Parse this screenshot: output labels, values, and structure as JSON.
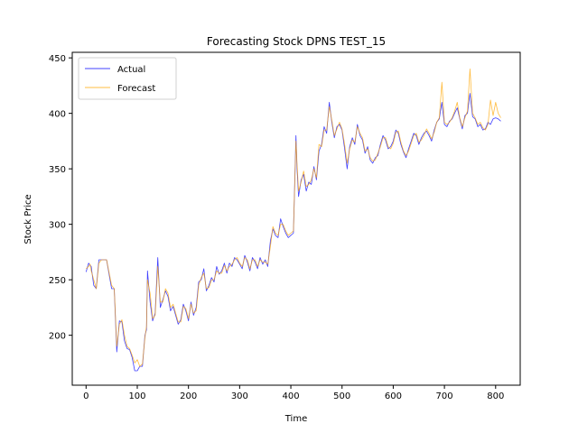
{
  "chart_data": {
    "type": "line",
    "title": "Forecasting Stock DPNS TEST_15",
    "xlabel": "Time",
    "ylabel": "Stock Price",
    "xlim": [
      -27,
      848
    ],
    "ylim": [
      155,
      455
    ],
    "xticks": [
      0,
      100,
      200,
      300,
      400,
      500,
      600,
      700,
      800
    ],
    "yticks": [
      200,
      250,
      300,
      350,
      400,
      450
    ],
    "grid": false,
    "legend_position": "top-left",
    "series": [
      {
        "name": "Actual",
        "color": "#0000ff",
        "x": [
          0,
          5,
          8,
          10,
          12,
          15,
          20,
          25,
          30,
          40,
          50,
          55,
          60,
          65,
          70,
          75,
          80,
          85,
          90,
          95,
          100,
          105,
          110,
          115,
          118,
          120,
          125,
          130,
          135,
          140,
          145,
          150,
          155,
          160,
          165,
          170,
          175,
          180,
          185,
          190,
          195,
          200,
          205,
          210,
          215,
          220,
          225,
          230,
          235,
          240,
          245,
          250,
          255,
          260,
          265,
          270,
          275,
          280,
          285,
          290,
          295,
          300,
          305,
          310,
          315,
          320,
          325,
          330,
          335,
          340,
          345,
          350,
          355,
          360,
          365,
          370,
          375,
          380,
          385,
          390,
          395,
          400,
          405,
          410,
          412,
          415,
          420,
          425,
          430,
          435,
          440,
          445,
          450,
          455,
          460,
          465,
          470,
          475,
          480,
          485,
          490,
          495,
          500,
          505,
          510,
          515,
          520,
          525,
          530,
          535,
          540,
          545,
          550,
          555,
          560,
          565,
          570,
          575,
          580,
          585,
          590,
          595,
          600,
          605,
          610,
          615,
          620,
          625,
          630,
          635,
          640,
          645,
          650,
          655,
          660,
          665,
          670,
          675,
          680,
          685,
          690,
          695,
          700,
          705,
          710,
          715,
          720,
          725,
          730,
          735,
          740,
          745,
          750,
          755,
          760,
          765,
          770,
          775,
          780,
          785,
          790,
          795,
          800,
          805,
          810
        ],
        "values": [
          257,
          265,
          263,
          262,
          255,
          245,
          242,
          268,
          268,
          268,
          242,
          242,
          185,
          213,
          212,
          195,
          188,
          187,
          180,
          168,
          168,
          172,
          172,
          200,
          205,
          258,
          230,
          213,
          220,
          270,
          225,
          232,
          240,
          235,
          222,
          226,
          218,
          210,
          214,
          228,
          222,
          213,
          230,
          218,
          225,
          248,
          250,
          260,
          240,
          245,
          252,
          248,
          262,
          255,
          258,
          265,
          256,
          265,
          262,
          270,
          268,
          264,
          260,
          272,
          266,
          258,
          270,
          266,
          260,
          270,
          264,
          268,
          262,
          285,
          296,
          290,
          288,
          305,
          298,
          292,
          288,
          290,
          292,
          380,
          350,
          325,
          340,
          345,
          330,
          338,
          336,
          352,
          340,
          366,
          372,
          388,
          382,
          410,
          392,
          378,
          388,
          390,
          385,
          368,
          350,
          370,
          378,
          372,
          390,
          380,
          376,
          364,
          370,
          358,
          355,
          360,
          362,
          372,
          380,
          376,
          368,
          370,
          375,
          385,
          382,
          372,
          365,
          360,
          368,
          375,
          382,
          380,
          372,
          378,
          382,
          384,
          380,
          375,
          385,
          392,
          395,
          410,
          390,
          388,
          393,
          395,
          400,
          405,
          395,
          386,
          398,
          400,
          418,
          397,
          395,
          388,
          390,
          385,
          386,
          392,
          390,
          395,
          396,
          395,
          393
        ]
      },
      {
        "name": "Forecast",
        "color": "#ffa500",
        "x": [
          0,
          5,
          8,
          10,
          12,
          15,
          20,
          25,
          30,
          40,
          50,
          55,
          60,
          65,
          70,
          75,
          80,
          85,
          90,
          95,
          100,
          105,
          110,
          115,
          118,
          120,
          125,
          130,
          135,
          140,
          145,
          150,
          155,
          160,
          165,
          170,
          175,
          180,
          185,
          190,
          195,
          200,
          205,
          210,
          215,
          220,
          225,
          230,
          235,
          240,
          245,
          250,
          255,
          260,
          265,
          270,
          275,
          280,
          285,
          290,
          295,
          300,
          305,
          310,
          315,
          320,
          325,
          330,
          335,
          340,
          345,
          350,
          355,
          360,
          365,
          370,
          375,
          380,
          385,
          390,
          395,
          400,
          405,
          410,
          412,
          415,
          420,
          425,
          430,
          435,
          440,
          445,
          450,
          455,
          460,
          465,
          470,
          475,
          480,
          485,
          490,
          495,
          500,
          505,
          510,
          515,
          520,
          525,
          530,
          535,
          540,
          545,
          550,
          555,
          560,
          565,
          570,
          575,
          580,
          585,
          590,
          595,
          600,
          605,
          610,
          615,
          620,
          625,
          630,
          635,
          640,
          645,
          650,
          655,
          660,
          665,
          670,
          675,
          680,
          685,
          690,
          695,
          700,
          705,
          710,
          715,
          720,
          725,
          730,
          735,
          740,
          745,
          750,
          755,
          760,
          765,
          770,
          775,
          780,
          785,
          790,
          795,
          800,
          805,
          810
        ],
        "values": [
          260,
          262,
          264,
          258,
          255,
          250,
          242,
          265,
          268,
          268,
          245,
          242,
          190,
          210,
          214,
          200,
          190,
          188,
          182,
          175,
          178,
          172,
          174,
          198,
          208,
          250,
          238,
          215,
          218,
          262,
          230,
          230,
          242,
          238,
          225,
          228,
          220,
          212,
          212,
          226,
          224,
          215,
          228,
          220,
          222,
          245,
          252,
          256,
          242,
          243,
          250,
          250,
          258,
          256,
          256,
          263,
          258,
          262,
          264,
          268,
          270,
          265,
          262,
          270,
          268,
          260,
          268,
          268,
          262,
          268,
          266,
          266,
          264,
          280,
          298,
          292,
          290,
          300,
          300,
          294,
          290,
          292,
          294,
          375,
          355,
          330,
          338,
          348,
          334,
          336,
          340,
          350,
          342,
          372,
          370,
          385,
          385,
          406,
          394,
          380,
          386,
          392,
          386,
          372,
          355,
          368,
          376,
          374,
          388,
          382,
          378,
          366,
          368,
          360,
          357,
          358,
          364,
          370,
          378,
          378,
          370,
          368,
          373,
          383,
          384,
          374,
          366,
          362,
          366,
          373,
          380,
          382,
          374,
          376,
          380,
          386,
          382,
          377,
          383,
          392,
          396,
          428,
          392,
          390,
          392,
          396,
          402,
          410,
          396,
          388,
          396,
          402,
          440,
          400,
          396,
          390,
          392,
          387,
          385,
          390,
          412,
          398,
          410,
          400,
          396
        ]
      }
    ]
  }
}
